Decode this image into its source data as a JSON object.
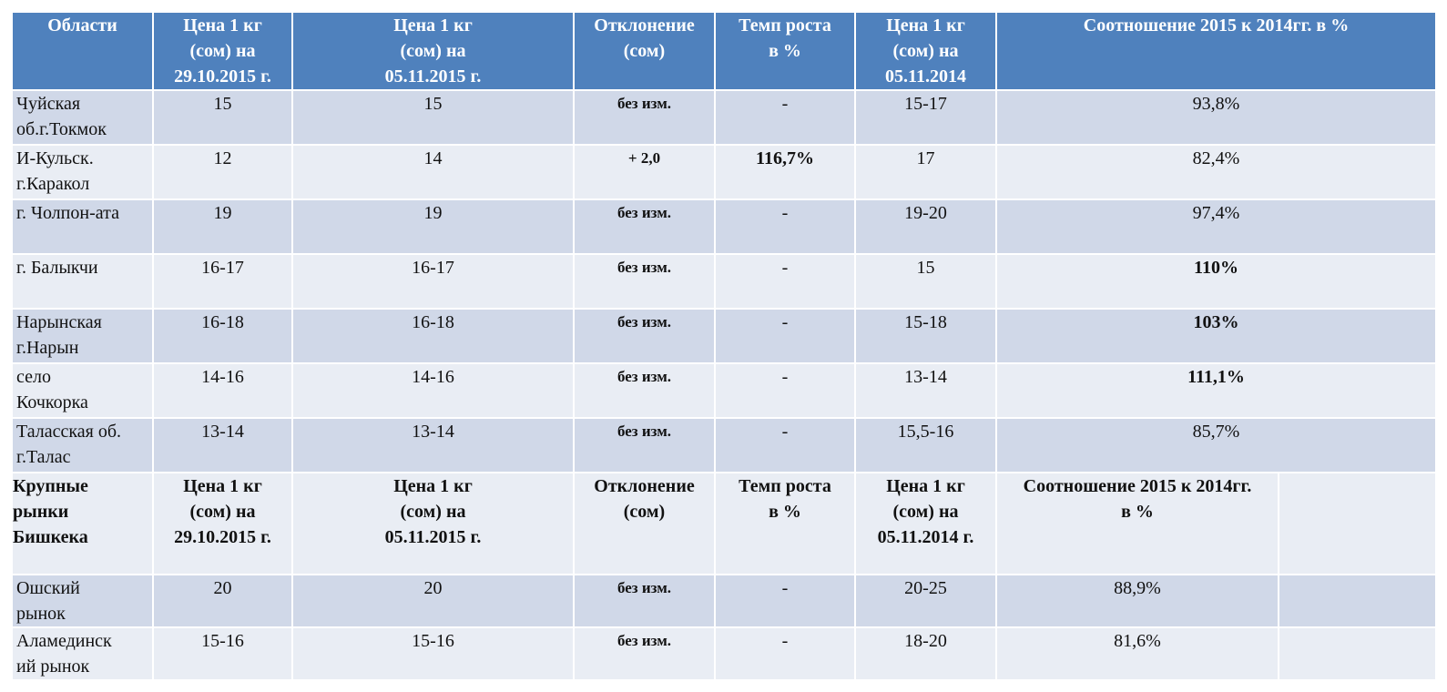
{
  "header": {
    "col1": "Области",
    "col2_line1": "Цена 1 кг",
    "col2_line2": "(сом) на",
    "col2_line3": "29.10.2015 г.",
    "col3_line1": "Цена 1 кг",
    "col3_line2": "(сом) на",
    "col3_line3": "05.11.2015 г.",
    "col4_line1": "Отклонение",
    "col4_line2": "(сом)",
    "col5_line1": "Темп роста",
    "col5_line2": "в %",
    "col6_line1": "Цена 1 кг",
    "col6_line2": "(сом) на",
    "col6_line3": "05.11.2014",
    "col7": "Соотношение 2015 к 2014гг. в %"
  },
  "regions": [
    {
      "name_l1": "Чуйская",
      "name_l2": "об.г.Токмок",
      "p1": "15",
      "p2": "15",
      "dev": "без изм.",
      "growth": "-",
      "p2014": "15-17",
      "ratio": "93,8%"
    },
    {
      "name_l1": "И-Кульск.",
      "name_l2": "г.Каракол",
      "p1": "12",
      "p2": "14",
      "dev": "+ 2,0",
      "growth": "116,7%",
      "p2014": "17",
      "ratio": "82,4%"
    },
    {
      "name_l1": "г. Чолпон-ата",
      "name_l2": "",
      "p1": "19",
      "p2": "19",
      "dev": "без изм.",
      "growth": "-",
      "p2014": "19-20",
      "ratio": "97,4%"
    },
    {
      "name_l1": "г. Балыкчи",
      "name_l2": "",
      "p1": "16-17",
      "p2": "16-17",
      "dev": "без изм.",
      "growth": "-",
      "p2014": "15",
      "ratio": "110%"
    },
    {
      "name_l1": "Нарынская",
      "name_l2": "г.Нарын",
      "p1": "16-18",
      "p2": "16-18",
      "dev": "без изм.",
      "growth": "-",
      "p2014": "15-18",
      "ratio": "103%"
    },
    {
      "name_l1": "село",
      "name_l2": "Кочкорка",
      "p1": "14-16",
      "p2": "14-16",
      "dev": "без изм.",
      "growth": "-",
      "p2014": "13-14",
      "ratio": "111,1%"
    },
    {
      "name_l1": "Таласская об.",
      "name_l2": "г.Талас",
      "p1": "13-14",
      "p2": "13-14",
      "dev": "без изм.",
      "growth": "-",
      "p2014": "15,5-16",
      "ratio": "85,7%"
    }
  ],
  "subheader": {
    "col1_line1": "Крупные",
    "col1_line2": "рынки",
    "col1_line3": "Бишкека",
    "col2_line1": "Цена 1 кг",
    "col2_line2": "(сом) на",
    "col2_line3": "29.10.2015 г.",
    "col3_line1": "Цена 1 кг",
    "col3_line2": "(сом) на",
    "col3_line3": "05.11.2015 г.",
    "col4_line1": "Отклонение",
    "col4_line2": "(сом)",
    "col5_line1": "Темп роста",
    "col5_line2": "в %",
    "col6_line1": "Цена 1 кг",
    "col6_line2": "(сом) на",
    "col6_line3": "05.11.2014 г.",
    "col7_line1": "Соотношение 2015 к 2014гг.",
    "col7_line2": "в %"
  },
  "markets": [
    {
      "name_l1": "Ошский",
      "name_l2": "рынок",
      "p1": "20",
      "p2": "20",
      "dev": "без изм.",
      "growth": "-",
      "p2014": "20-25",
      "ratio": "88,9%"
    },
    {
      "name_l1": "Аламединск",
      "name_l2": "ий рынок",
      "p1": "15-16",
      "p2": "15-16",
      "dev": "без изм.",
      "growth": "-",
      "p2014": "18-20",
      "ratio": "81,6%"
    }
  ]
}
